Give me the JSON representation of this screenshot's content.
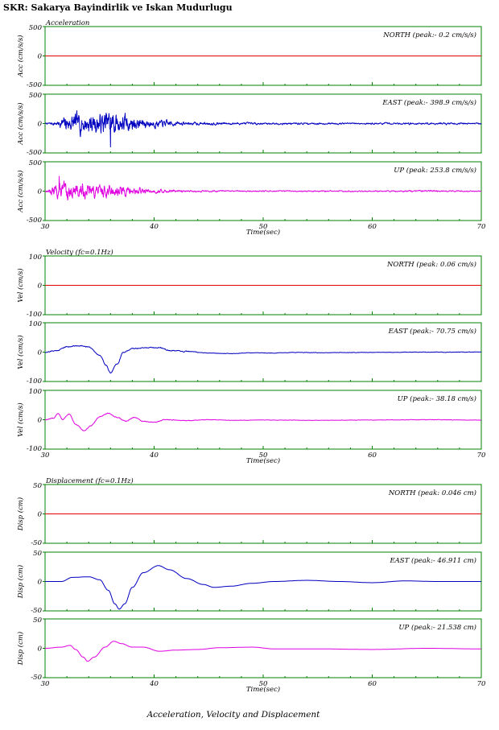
{
  "title": "SKR: Sakarya Bayindirlik ve Iskan Mudurlugu",
  "caption": "Acceleration, Velocity and Displacement",
  "colors": {
    "frame": "#008000",
    "north": "#e00000",
    "east": "#0000c0",
    "up": "#e000e0"
  },
  "chart_data": [
    {
      "type": "line",
      "group_label": "Acceleration",
      "xlabel": "Time(sec)",
      "xlim": [
        30,
        70
      ],
      "xticks": [
        30,
        40,
        50,
        60,
        70
      ],
      "panels": [
        {
          "ylabel": "Acc (cm/s/s)",
          "ylim": [
            -500,
            500
          ],
          "yticks": [
            500,
            0,
            -500
          ],
          "label": "NORTH (peak:- 0.2 cm/s/s)",
          "color": "#e00000",
          "signal": {
            "kind": "flat"
          }
        },
        {
          "ylabel": "Acc (cm/s/s)",
          "ylim": [
            -500,
            500
          ],
          "yticks": [
            500,
            0,
            -500
          ],
          "label": "EAST (peak:- 398.9 cm/s/s)",
          "color": "#0000c0",
          "signal": {
            "kind": "noise",
            "seed": 7,
            "peak_abs": 398.9,
            "peak_t": 36.0,
            "envelope": [
              [
                30,
                20
              ],
              [
                31,
                60
              ],
              [
                32,
                230
              ],
              [
                33,
                300
              ],
              [
                35,
                310
              ],
              [
                36,
                400
              ],
              [
                37,
                280
              ],
              [
                39,
                150
              ],
              [
                41,
                90
              ],
              [
                43,
                45
              ],
              [
                50,
                30
              ],
              [
                60,
                25
              ],
              [
                65,
                30
              ],
              [
                70,
                25
              ]
            ]
          }
        },
        {
          "ylabel": "Acc (cm/s/s)",
          "ylim": [
            -500,
            500
          ],
          "yticks": [
            500,
            0,
            -500
          ],
          "label": "UP (peak: 253.8 cm/s/s)",
          "color": "#e000e0",
          "signal": {
            "kind": "noise",
            "seed": 13,
            "peak_abs": 253.8,
            "peak_t": 31.3,
            "envelope": [
              [
                30,
                20
              ],
              [
                31,
                200
              ],
              [
                32,
                250
              ],
              [
                33,
                200
              ],
              [
                35,
                170
              ],
              [
                37,
                150
              ],
              [
                40,
                60
              ],
              [
                43,
                25
              ],
              [
                50,
                18
              ],
              [
                60,
                18
              ],
              [
                64,
                22
              ],
              [
                70,
                15
              ]
            ]
          }
        }
      ]
    },
    {
      "type": "line",
      "group_label": "Velocity (fc=0.1Hz)",
      "xlabel": "Time(sec)",
      "xlim": [
        30,
        70
      ],
      "xticks": [
        30,
        40,
        50,
        60,
        70
      ],
      "panels": [
        {
          "ylabel": "Vel (cm/s)",
          "ylim": [
            -100,
            100
          ],
          "yticks": [
            100,
            0,
            -100
          ],
          "label": "NORTH (peak: 0.06 cm/s)",
          "color": "#e00000",
          "signal": {
            "kind": "flat"
          }
        },
        {
          "ylabel": "Vel (cm/s)",
          "ylim": [
            -100,
            100
          ],
          "yticks": [
            100,
            0,
            -100
          ],
          "label": "EAST (peak:- 70.75 cm/s)",
          "color": "#0000c0",
          "signal": {
            "kind": "smooth",
            "seed": 21,
            "jitter": 2.5,
            "points": [
              [
                30,
                0
              ],
              [
                31,
                5
              ],
              [
                32,
                18
              ],
              [
                33,
                22
              ],
              [
                34,
                18
              ],
              [
                35,
                -10
              ],
              [
                35.6,
                -45
              ],
              [
                36,
                -70
              ],
              [
                36.6,
                -40
              ],
              [
                37.2,
                0
              ],
              [
                38,
                12
              ],
              [
                39.5,
                15
              ],
              [
                40.5,
                15
              ],
              [
                41.5,
                5
              ],
              [
                43,
                2
              ],
              [
                45,
                -3
              ],
              [
                47,
                -5
              ],
              [
                49,
                -2
              ],
              [
                51,
                -3
              ],
              [
                53,
                -1
              ],
              [
                55,
                -2
              ],
              [
                60,
                -1
              ],
              [
                65,
                0
              ],
              [
                70,
                0
              ]
            ]
          }
        },
        {
          "ylabel": "Vel (cm/s)",
          "ylim": [
            -100,
            100
          ],
          "yticks": [
            100,
            0,
            -100
          ],
          "label": "UP (peak:- 38.18 cm/s)",
          "color": "#e000e0",
          "signal": {
            "kind": "smooth",
            "seed": 33,
            "jitter": 2.0,
            "points": [
              [
                30,
                0
              ],
              [
                30.8,
                5
              ],
              [
                31.2,
                22
              ],
              [
                31.6,
                2
              ],
              [
                32.2,
                20
              ],
              [
                32.8,
                -15
              ],
              [
                33.6,
                -38
              ],
              [
                34.2,
                -20
              ],
              [
                35,
                10
              ],
              [
                35.8,
                22
              ],
              [
                36.6,
                8
              ],
              [
                37.4,
                -5
              ],
              [
                38.2,
                8
              ],
              [
                39,
                -5
              ],
              [
                40,
                -8
              ],
              [
                41,
                0
              ],
              [
                43,
                -3
              ],
              [
                45,
                0
              ],
              [
                47,
                -2
              ],
              [
                50,
                -1
              ],
              [
                55,
                -2
              ],
              [
                60,
                -1
              ],
              [
                65,
                0
              ],
              [
                70,
                -1
              ]
            ]
          }
        }
      ]
    },
    {
      "type": "line",
      "group_label": "Displacement (fc=0.1Hz)",
      "xlabel": "Time(sec)",
      "xlim": [
        30,
        70
      ],
      "xticks": [
        30,
        40,
        50,
        60,
        70
      ],
      "panels": [
        {
          "ylabel": "Disp (cm)",
          "ylim": [
            -50,
            50
          ],
          "yticks": [
            50,
            0,
            -50
          ],
          "label": "NORTH (peak: 0.046 cm)",
          "color": "#e00000",
          "signal": {
            "kind": "flat"
          }
        },
        {
          "ylabel": "Disp (cm)",
          "ylim": [
            -50,
            50
          ],
          "yticks": [
            50,
            0,
            -50
          ],
          "label": "EAST (peak:- 46.911 cm)",
          "color": "#0000c0",
          "signal": {
            "kind": "smooth",
            "seed": 41,
            "jitter": 0,
            "points": [
              [
                30,
                0
              ],
              [
                31.5,
                0
              ],
              [
                32.5,
                7
              ],
              [
                34,
                8
              ],
              [
                35,
                3
              ],
              [
                35.8,
                -15
              ],
              [
                36.4,
                -38
              ],
              [
                36.8,
                -47
              ],
              [
                37.3,
                -38
              ],
              [
                38,
                -10
              ],
              [
                39,
                15
              ],
              [
                40.4,
                27
              ],
              [
                41.4,
                20
              ],
              [
                43,
                5
              ],
              [
                44.5,
                -5
              ],
              [
                45.5,
                -10
              ],
              [
                47,
                -8
              ],
              [
                49,
                -3
              ],
              [
                51,
                0
              ],
              [
                54,
                2
              ],
              [
                57,
                0
              ],
              [
                60,
                -2
              ],
              [
                63,
                1
              ],
              [
                66,
                0
              ],
              [
                70,
                0
              ]
            ]
          }
        },
        {
          "ylabel": "Disp (cm)",
          "ylim": [
            -50,
            50
          ],
          "yticks": [
            50,
            0,
            -50
          ],
          "label": "UP (peak:- 21.538 cm)",
          "color": "#e000e0",
          "signal": {
            "kind": "smooth",
            "seed": 53,
            "jitter": 0,
            "points": [
              [
                30,
                0
              ],
              [
                31.5,
                2
              ],
              [
                32.3,
                5
              ],
              [
                32.8,
                -2
              ],
              [
                33.5,
                -15
              ],
              [
                33.9,
                -22
              ],
              [
                34.5,
                -15
              ],
              [
                35.5,
                2
              ],
              [
                36.3,
                12
              ],
              [
                37,
                8
              ],
              [
                38,
                2
              ],
              [
                39,
                2
              ],
              [
                40.5,
                -5
              ],
              [
                42,
                -3
              ],
              [
                44,
                -2
              ],
              [
                46,
                1
              ],
              [
                49,
                2
              ],
              [
                51,
                -1
              ],
              [
                55,
                -1
              ],
              [
                60,
                -2
              ],
              [
                65,
                0
              ],
              [
                70,
                -1
              ]
            ]
          }
        }
      ]
    }
  ]
}
